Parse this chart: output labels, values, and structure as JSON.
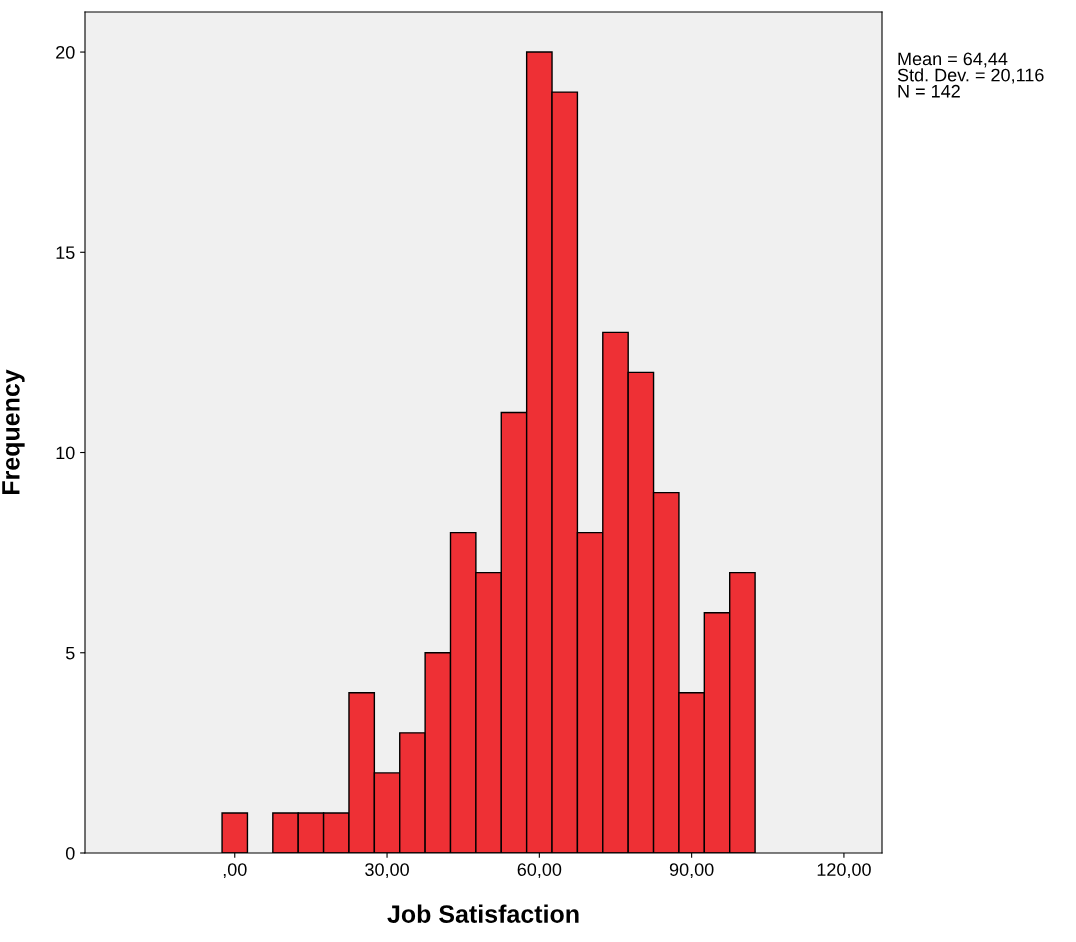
{
  "chart_data": {
    "type": "histogram",
    "xlabel": "Job Satisfaction",
    "ylabel": "Frequency",
    "bins": [
      -2.5,
      2.5,
      7.5,
      12.5,
      17.5,
      22.5,
      27.5,
      32.5,
      37.5,
      42.5,
      47.5,
      52.5,
      57.5,
      62.5,
      67.5,
      72.5,
      77.5,
      82.5,
      87.5,
      92.5,
      97.5,
      102.5
    ],
    "values": [
      1,
      0,
      1,
      1,
      1,
      4,
      2,
      3,
      5,
      8,
      7,
      11,
      20,
      19,
      8,
      13,
      12,
      9,
      4,
      6,
      7
    ],
    "color": "#ee3035",
    "xlim": [
      -29.5,
      127.5
    ],
    "ylim": [
      0,
      21
    ],
    "xticks": [
      {
        "value": 0,
        "label": ",00"
      },
      {
        "value": 30,
        "label": "30,00"
      },
      {
        "value": 60,
        "label": "60,00"
      },
      {
        "value": 90,
        "label": "90,00"
      },
      {
        "value": 120,
        "label": "120,00"
      }
    ],
    "yticks": [
      0,
      5,
      10,
      15,
      20
    ],
    "grid": false,
    "annotations": [
      "Mean = 64,44\nStd. Dev. = 20,116\nN = 142"
    ]
  }
}
